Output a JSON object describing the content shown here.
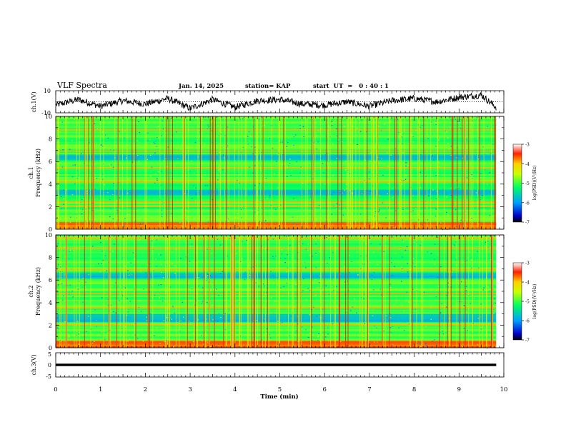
{
  "header": {
    "title": "VLF Spectra",
    "date": "Jan. 14, 2025",
    "station": "station= KAP",
    "start_ut": "start  UT  =   0 : 40 : 1"
  },
  "chart_data": [
    {
      "id": "ch1-waveform",
      "type": "line",
      "ylabel": "ch.1(V)",
      "ylim": [
        -10,
        10
      ],
      "ytick_labels": [
        "10",
        "-10"
      ],
      "x_extent_min": [
        0,
        9.83
      ],
      "description_of_series": "noisy waveform mostly between -8 and 7 V",
      "series_samples": [
        {
          "x": 0.0,
          "y": -3
        },
        {
          "x": 0.5,
          "y": 2
        },
        {
          "x": 1.0,
          "y": -4
        },
        {
          "x": 1.5,
          "y": 1
        },
        {
          "x": 2.0,
          "y": -2
        },
        {
          "x": 2.5,
          "y": 3
        },
        {
          "x": 3.0,
          "y": -6
        },
        {
          "x": 3.5,
          "y": 2
        },
        {
          "x": 4.0,
          "y": -5
        },
        {
          "x": 4.5,
          "y": 1
        },
        {
          "x": 5.0,
          "y": 2
        },
        {
          "x": 5.5,
          "y": -2
        },
        {
          "x": 6.0,
          "y": -3
        },
        {
          "x": 6.5,
          "y": 0
        },
        {
          "x": 7.0,
          "y": -4
        },
        {
          "x": 7.5,
          "y": 1
        },
        {
          "x": 8.0,
          "y": 3
        },
        {
          "x": 8.5,
          "y": 0
        },
        {
          "x": 9.0,
          "y": 4
        },
        {
          "x": 9.5,
          "y": 6
        },
        {
          "x": 9.83,
          "y": -5
        }
      ]
    },
    {
      "id": "ch1-spectrogram",
      "type": "heatmap",
      "ylabel_line1": "ch.1",
      "ylabel_line2": "Frequency (kHz)",
      "ylim": [
        0,
        10
      ],
      "yticks": [
        0,
        2,
        4,
        6,
        8,
        10
      ],
      "x_extent_min": [
        0,
        9.83
      ],
      "colorbar": {
        "label": "log(PSD)(V²/Hz)",
        "range": [
          -7,
          -3
        ],
        "ticks": [
          "-3",
          "-4",
          "-5",
          "-6",
          "-7"
        ]
      },
      "bands_khz": [
        2.0,
        2.4,
        4.2,
        5.4,
        6.9,
        8.8
      ],
      "quiet_bands_khz": [
        [
          3.0,
          3.5
        ],
        [
          6.1,
          6.6
        ]
      ]
    },
    {
      "id": "ch2-spectrogram",
      "type": "heatmap",
      "ylabel_line1": "ch.2",
      "ylabel_line2": "Frequency (kHz)",
      "ylim": [
        0,
        10
      ],
      "yticks": [
        0,
        2,
        4,
        6,
        8,
        10
      ],
      "x_extent_min": [
        0,
        9.83
      ],
      "colorbar": {
        "label": "log(PSD)(V²/Hz)",
        "range": [
          -7,
          -3
        ],
        "ticks": [
          "-3",
          "-4",
          "-5",
          "-6",
          "-7"
        ]
      },
      "bands_khz": [
        2.0,
        3.5,
        4.8,
        6.9,
        8.8,
        9.7
      ],
      "quiet_bands_khz": [
        [
          2.2,
          3.0
        ],
        [
          6.1,
          6.6
        ]
      ]
    },
    {
      "id": "ch3-waveform",
      "type": "line",
      "ylabel": "ch.3(V)",
      "ylim": [
        -5,
        5
      ],
      "ytick_labels": [
        "5",
        "0",
        "-5"
      ],
      "x_extent_min": [
        0,
        9.83
      ],
      "series_samples": [
        {
          "x": 0.0,
          "y": 0
        },
        {
          "x": 9.83,
          "y": 0
        }
      ],
      "band_half_width_v": 0.5
    }
  ],
  "xaxis": {
    "label": "Time (min)",
    "range": [
      0,
      10
    ],
    "tick_labels": [
      "0",
      "1",
      "2",
      "3",
      "4",
      "5",
      "6",
      "7",
      "8",
      "9",
      "10"
    ]
  }
}
